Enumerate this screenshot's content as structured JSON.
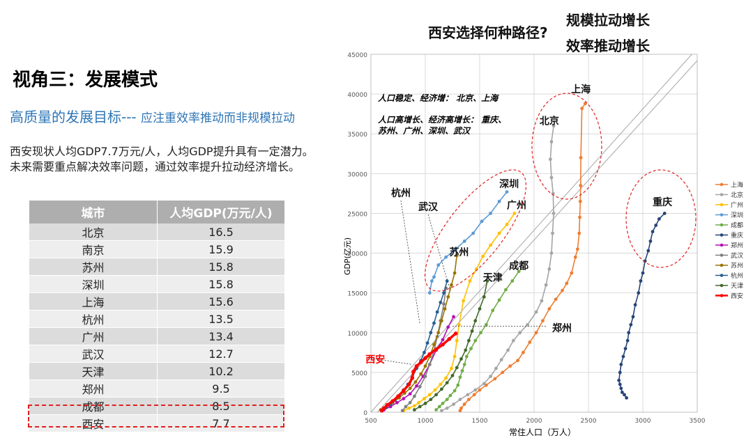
{
  "heading": {
    "section_title": "视角三：发展模式",
    "subtitle_main": "高质量的发展目标---",
    "subtitle_tail": "应注重效率推动而非规模拉动",
    "body_line1": "西安现状人均GDP7.7万元/人，人均GDP提升具有一定潜力。",
    "body_line2": "未来需要重点解决效率问题，通过效率提升拉动经济增长。"
  },
  "question": {
    "text": "西安选择何种路径?",
    "option1": "规模拉动增长",
    "option2": "效率推动增长"
  },
  "table": {
    "headers": [
      "城市",
      "人均GDP(万元/人)"
    ],
    "rows": [
      [
        "北京",
        "16.5"
      ],
      [
        "南京",
        "15.9"
      ],
      [
        "苏州",
        "15.8"
      ],
      [
        "深圳",
        "15.8"
      ],
      [
        "上海",
        "15.6"
      ],
      [
        "杭州",
        "13.5"
      ],
      [
        "广州",
        "13.4"
      ],
      [
        "武汉",
        "12.7"
      ],
      [
        "天津",
        "10.2"
      ],
      [
        "郑州",
        "9.5"
      ],
      [
        "成都",
        "8.5"
      ],
      [
        "西安",
        "7.7"
      ]
    ]
  },
  "chart_data": {
    "type": "line",
    "title": "",
    "xlabel": "常住人口（万人）",
    "ylabel": "GDP(亿元)",
    "xlim": [
      500,
      3500
    ],
    "ylim": [
      0,
      45000
    ],
    "x_ticks": [
      500,
      1000,
      1500,
      2000,
      2500,
      3000,
      3500
    ],
    "y_ticks": [
      0,
      5000,
      10000,
      15000,
      20000,
      25000,
      30000,
      35000,
      40000,
      45000
    ],
    "grid": true,
    "legend_position": "right",
    "annotations": {
      "group1": "人口稳定、经济增：  北京、上海",
      "group2a": "人口高增长、经济高增长：  重庆、",
      "group2b": "苏州、广州、深圳、武汉"
    },
    "series": [
      {
        "name": "上海",
        "color": "#ed7d31",
        "label": "上海",
        "x": [
          1320,
          1330,
          1360,
          1400,
          1450,
          1500,
          1560,
          1640,
          1710,
          1780,
          1850,
          1900,
          1960,
          2020,
          2080,
          2140,
          2200,
          2260,
          2300,
          2345,
          2380,
          2400,
          2415,
          2420,
          2425,
          2428,
          2430,
          2440,
          2470
        ],
        "y": [
          200,
          500,
          1000,
          1600,
          2200,
          2800,
          3400,
          4200,
          5000,
          5800,
          6500,
          7500,
          8800,
          10000,
          11500,
          13000,
          14200,
          15300,
          16200,
          17500,
          19500,
          20500,
          22500,
          24500,
          26500,
          28500,
          32000,
          38200,
          38800
        ]
      },
      {
        "name": "北京",
        "color": "#a5a5a5",
        "label": "北京",
        "x": [
          1150,
          1200,
          1260,
          1320,
          1390,
          1460,
          1540,
          1600,
          1650,
          1700,
          1760,
          1810,
          1870,
          1940,
          2020,
          2070,
          2110,
          2140,
          2160,
          2170,
          2180,
          2175,
          2160,
          2150,
          2160,
          2180
        ],
        "y": [
          200,
          500,
          1000,
          1600,
          2200,
          2800,
          3600,
          4500,
          5500,
          6600,
          7800,
          9000,
          10000,
          11000,
          12600,
          14000,
          16000,
          18000,
          20000,
          22500,
          25000,
          27500,
          29500,
          31800,
          34000,
          36000
        ]
      },
      {
        "name": "广州",
        "color": "#ffc000",
        "label": "广州",
        "x": [
          800,
          850,
          900,
          940,
          990,
          1040,
          1090,
          1140,
          1190,
          1240,
          1270,
          1290,
          1310,
          1350,
          1410,
          1470,
          1530,
          1600,
          1680,
          1750,
          1820
        ],
        "y": [
          200,
          500,
          800,
          1200,
          1700,
          2200,
          2800,
          3500,
          4300,
          5500,
          7000,
          9000,
          11000,
          14000,
          16500,
          18000,
          19600,
          21000,
          22500,
          23600,
          25000
        ]
      },
      {
        "name": "深圳",
        "color": "#5b9bd5",
        "label": "深圳",
        "x": [
          1040,
          1060,
          1080,
          1120,
          1190,
          1280,
          1360,
          1440,
          1520,
          1600,
          1680,
          1750
        ],
        "y": [
          15000,
          16500,
          17000,
          18500,
          19500,
          20500,
          21500,
          22500,
          24000,
          25000,
          26500,
          27700
        ]
      },
      {
        "name": "成都",
        "color": "#70ad47",
        "label": "成都",
        "x": [
          1100,
          1130,
          1160,
          1200,
          1230,
          1270,
          1300,
          1320,
          1340,
          1360,
          1380,
          1420,
          1460,
          1510,
          1560,
          1620,
          1680,
          1740,
          1800,
          1860
        ],
        "y": [
          300,
          700,
          1100,
          1600,
          2100,
          2700,
          3400,
          4400,
          5200,
          6000,
          7000,
          8000,
          9000,
          10000,
          11000,
          12800,
          14100,
          15400,
          16500,
          17700
        ]
      },
      {
        "name": "重庆",
        "color": "#264478",
        "label": "重庆",
        "x": [
          2850,
          2830,
          2810,
          2800,
          2790,
          2780,
          2790,
          2800,
          2820,
          2840,
          2860,
          2870,
          2890,
          2910,
          2930,
          2960,
          2980,
          3000,
          3020,
          3050,
          3070,
          3090,
          3120,
          3150,
          3200
        ],
        "y": [
          1800,
          2200,
          2500,
          3000,
          3500,
          4000,
          5000,
          6000,
          7000,
          8000,
          9000,
          10000,
          11000,
          12000,
          13500,
          15000,
          16500,
          17500,
          19000,
          20300,
          21500,
          22700,
          23500,
          24300,
          25000
        ]
      },
      {
        "name": "郑州",
        "color": "#b40fb4",
        "x": [
          620,
          680,
          740,
          800,
          860,
          920,
          980,
          1040,
          1100,
          1160,
          1210,
          1260
        ],
        "y": [
          300,
          700,
          1200,
          1700,
          2300,
          3300,
          4500,
          6000,
          7800,
          9100,
          10700,
          12000
        ]
      },
      {
        "name": "武汉",
        "color": "#7f7f7f",
        "x": [
          790,
          820,
          860,
          900,
          950,
          1000,
          1040,
          1080,
          1110,
          1140,
          1170,
          1190
        ],
        "y": [
          200,
          700,
          1200,
          2000,
          3200,
          4500,
          6000,
          7700,
          9500,
          11500,
          13600,
          15600
        ]
      },
      {
        "name": "苏州",
        "color": "#997300",
        "label": "苏州",
        "x": [
          590,
          640,
          700,
          760,
          810,
          860,
          910,
          960,
          1000,
          1040,
          1080,
          1120,
          1150,
          1180,
          1210,
          1240,
          1270,
          1290
        ],
        "y": [
          300,
          700,
          1200,
          1800,
          2400,
          3000,
          3800,
          4800,
          5800,
          7000,
          8500,
          10000,
          11500,
          13000,
          14500,
          16000,
          17500,
          19700
        ]
      },
      {
        "name": "杭州",
        "color": "#255e91",
        "label": "杭州",
        "x": [
          600,
          640,
          680,
          720,
          760,
          800,
          840,
          880,
          920,
          960,
          990,
          1020,
          1050,
          1080,
          1110,
          1140,
          1170,
          1200
        ],
        "y": [
          200,
          600,
          1000,
          1500,
          2100,
          2800,
          3500,
          4400,
          5500,
          6500,
          7500,
          8700,
          10000,
          11200,
          12600,
          13800,
          15000,
          16500
        ]
      },
      {
        "name": "天津",
        "color": "#43682b",
        "label": "天津",
        "x": [
          900,
          950,
          1000,
          1050,
          1100,
          1150,
          1200,
          1250,
          1290,
          1330,
          1370,
          1400,
          1430,
          1460,
          1500,
          1540,
          1570
        ],
        "y": [
          300,
          700,
          1100,
          1600,
          2200,
          2900,
          3700,
          4600,
          5600,
          6700,
          7800,
          9000,
          10200,
          11500,
          13000,
          14500,
          16500
        ]
      },
      {
        "name": "西安",
        "color": "#ff0000",
        "label": "西安",
        "x": [
          600,
          620,
          650,
          700,
          750,
          800,
          850,
          880,
          890,
          920,
          960,
          1000,
          1040,
          1100,
          1160,
          1220,
          1280
        ],
        "y": [
          200,
          500,
          900,
          1400,
          2000,
          2700,
          3500,
          4300,
          5100,
          5800,
          6300,
          6800,
          7300,
          7900,
          8500,
          9200,
          9900
        ]
      }
    ],
    "callouts": {
      "hangzhou": "杭州",
      "wuhan": "武汉",
      "zhengzhou": "郑州",
      "xian": "西安"
    }
  }
}
